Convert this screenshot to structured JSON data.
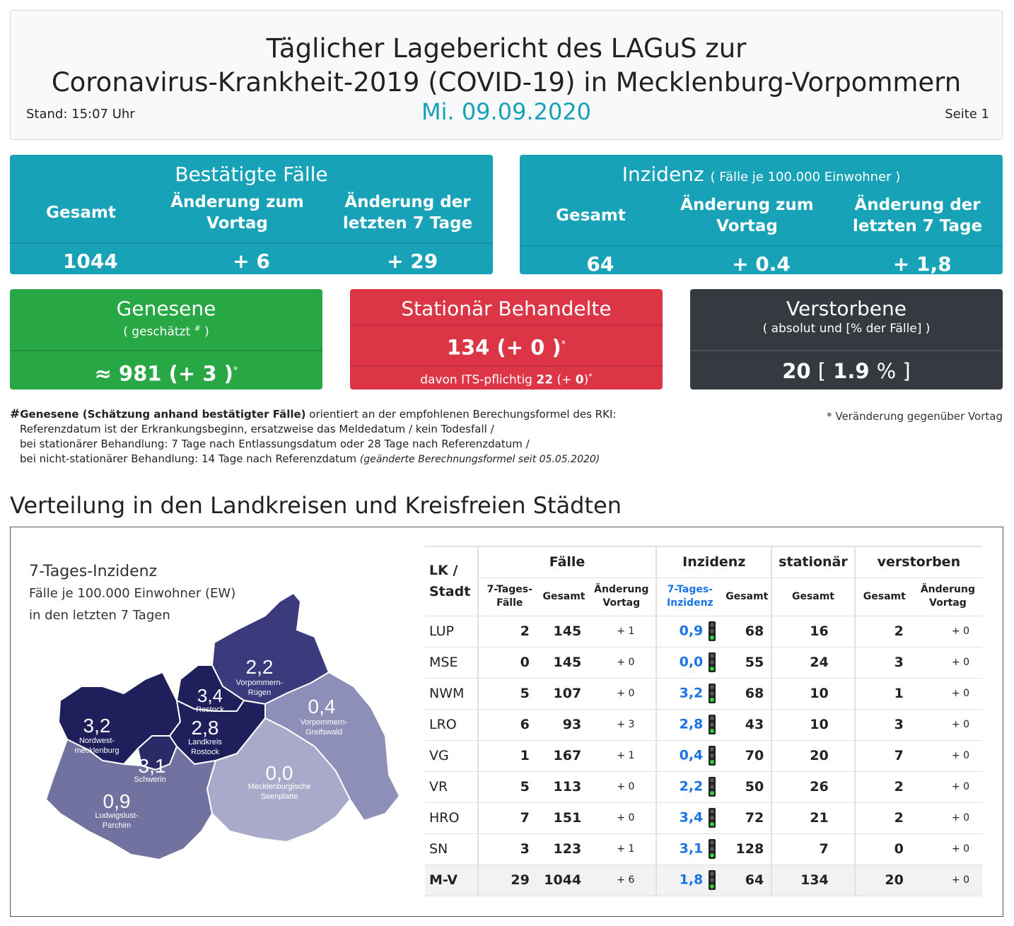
{
  "header": {
    "title_line1": "Täglicher Lagebericht des LAGuS zur",
    "title_line2": "Coronavirus-Krankheit-2019 (COVID-19) in Mecklenburg-Vorpommern",
    "stand": "Stand: 15:07 Uhr",
    "date": "Mi. 09.09.2020",
    "seite": "Seite 1"
  },
  "faelle": {
    "title": "Bestätigte Fälle",
    "col1": "Gesamt",
    "col2": "Änderung zum Vortag",
    "col3": "Änderung der letzten 7 Tage",
    "v1": "1044",
    "v2": "+ 6",
    "v3": "+ 29"
  },
  "inzidenz": {
    "title": "Inzidenz",
    "subtitle": "( Fälle je 100.000 Einwohner )",
    "col1": "Gesamt",
    "col2": "Änderung zum Vortag",
    "col3": "Änderung der letzten 7 Tage",
    "v1": "64",
    "v2": "+ 0.4",
    "v3": "+ 1,8"
  },
  "genesene": {
    "title": "Genesene",
    "sub_a": "( geschätzt ",
    "sub_sup": "#",
    "sub_b": " )",
    "val_main": "≈ 981",
    "val_change": "(+ 3 )",
    "star": "*"
  },
  "stationaer": {
    "title": "Stationär Behandelte",
    "val_main": "134",
    "val_change": "(+ 0 )",
    "star": "*",
    "its_label": "davon ITS-pflichtig",
    "its_val": "22",
    "its_change_a": "(+ ",
    "its_change_b": "0",
    "its_change_c": ")"
  },
  "verstorbene": {
    "title": "Verstorbene",
    "sub": "( absolut und [% der Fälle] )",
    "val_main": "20",
    "bracket_open": "[",
    "pct": "1.9",
    "pct_unit": "% ]"
  },
  "footnote": {
    "hash": "#",
    "bold": "Genesene (Schätzung anhand bestätigter Fälle)",
    "line1": " orientiert an der empfohlenen Berechungsformel des RKI:",
    "line2": "Referenzdatum ist der Erkrankungsbeginn, ersatzweise das Meldedatum / kein Todesfall /",
    "line3": "bei stationärer Behandlung: 7 Tage nach Entlassungsdatum oder 28 Tage nach Referenzdatum /",
    "line4": "bei nicht-stationärer Behandlung: 14 Tage nach Referenzdatum ",
    "line4_italic": "(geänderte Berechnungsformel seit 05.05.2020)",
    "veraenderung": "* Veränderung gegenüber Vortag"
  },
  "section_title": "Verteilung in den Landkreisen und Kreisfreien Städten",
  "map": {
    "legend_title": "7-Tages-Inzidenz",
    "legend_line1": "Fälle je 100.000 Einwohner (EW)",
    "legend_line2": "in den letzten 7 Tagen",
    "regions": [
      {
        "value": "2,2",
        "label1": "Vorpommern-",
        "label2": "Rügen",
        "color": "#3a3a7c"
      },
      {
        "value": "3,4",
        "label1": "Rostock",
        "label2": "",
        "color": "#1f1f5c"
      },
      {
        "value": "0,4",
        "label1": "Vorpommern-",
        "label2": "Greifswald",
        "color": "#8e8fb8"
      },
      {
        "value": "3,2",
        "label1": "Nordwest-",
        "label2": "mecklenburg",
        "color": "#1f1f5c"
      },
      {
        "value": "2,8",
        "label1": "Landkreis",
        "label2": "Rostock",
        "color": "#1f1f5c"
      },
      {
        "value": "3,1",
        "label1": "Schwerin",
        "label2": "",
        "color": "#2a2a66"
      },
      {
        "value": "0,0",
        "label1": "Mecklenburgische",
        "label2": "Seenplatte",
        "color": "#a9aac9"
      },
      {
        "value": "0,9",
        "label1": "Ludwigslust-",
        "label2": "Parchim",
        "color": "#7272a0"
      }
    ]
  },
  "table": {
    "h_lk": "LK / Stadt",
    "h_faelle": "Fälle",
    "h_inzidenz": "Inzidenz",
    "h_stationaer": "stationär",
    "h_verstorben": "verstorben",
    "sh_7tage": "7-Tages- Fälle",
    "sh_gesamt": "Gesamt",
    "sh_aenderung": "Änderung Vortag",
    "sh_7inz": "7-Tages- Inzidenz",
    "sh_inz_gesamt": "Gesamt",
    "sh_stat_gesamt": "Gesamt",
    "sh_verst_gesamt": "Gesamt",
    "sh_verst_aenderung": "Änderung Vortag",
    "rows": [
      {
        "lk": "LUP",
        "f7": "2",
        "fg": "145",
        "fa": "+ 1",
        "i7": "0,9",
        "ig": "68",
        "sg": "16",
        "vg": "2",
        "va": "+ 0"
      },
      {
        "lk": "MSE",
        "f7": "0",
        "fg": "145",
        "fa": "+ 0",
        "i7": "0,0",
        "ig": "55",
        "sg": "24",
        "vg": "3",
        "va": "+ 0"
      },
      {
        "lk": "NWM",
        "f7": "5",
        "fg": "107",
        "fa": "+ 0",
        "i7": "3,2",
        "ig": "68",
        "sg": "10",
        "vg": "1",
        "va": "+ 0"
      },
      {
        "lk": "LRO",
        "f7": "6",
        "fg": "93",
        "fa": "+ 3",
        "i7": "2,8",
        "ig": "43",
        "sg": "10",
        "vg": "3",
        "va": "+ 0"
      },
      {
        "lk": "VG",
        "f7": "1",
        "fg": "167",
        "fa": "+ 1",
        "i7": "0,4",
        "ig": "70",
        "sg": "20",
        "vg": "7",
        "va": "+ 0"
      },
      {
        "lk": "VR",
        "f7": "5",
        "fg": "113",
        "fa": "+ 0",
        "i7": "2,2",
        "ig": "50",
        "sg": "26",
        "vg": "2",
        "va": "+ 0"
      },
      {
        "lk": "HRO",
        "f7": "7",
        "fg": "151",
        "fa": "+ 0",
        "i7": "3,4",
        "ig": "72",
        "sg": "21",
        "vg": "2",
        "va": "+ 0"
      },
      {
        "lk": "SN",
        "f7": "3",
        "fg": "123",
        "fa": "+ 1",
        "i7": "3,1",
        "ig": "128",
        "sg": "7",
        "vg": "0",
        "va": "+ 0"
      }
    ],
    "total": {
      "lk": "M-V",
      "f7": "29",
      "fg": "1044",
      "fa": "+ 6",
      "i7": "1,8",
      "ig": "64",
      "sg": "134",
      "vg": "20",
      "va": "+ 0"
    }
  }
}
